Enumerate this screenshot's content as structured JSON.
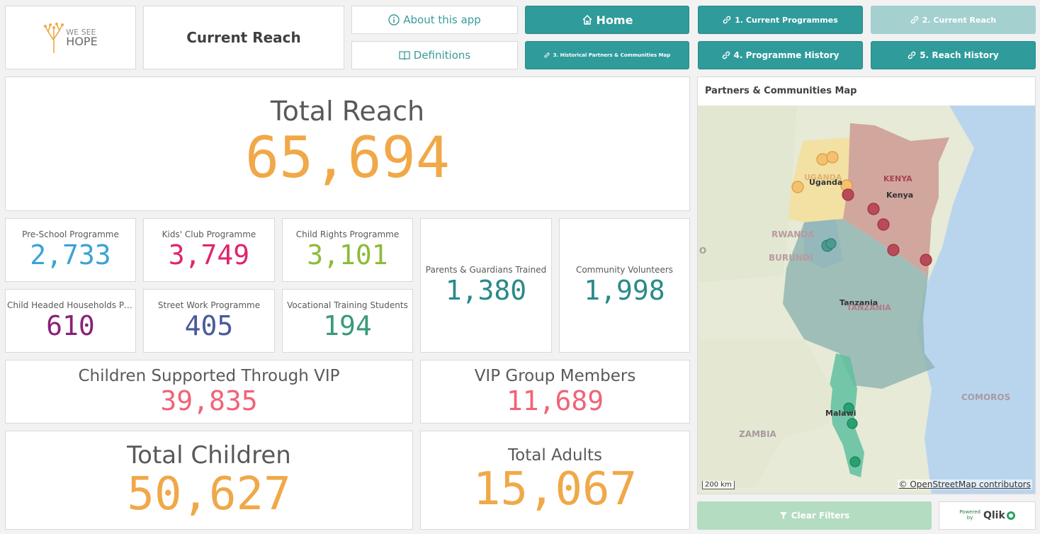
{
  "logo": {
    "line1": "WE SEE",
    "line2": "HOPE"
  },
  "header": {
    "title": "Current Reach"
  },
  "nav": {
    "about": "About this app",
    "definitions": "Definitions",
    "home": "Home",
    "current_programmes": "1. Current Programmes",
    "current_reach": "2. Current Reach",
    "historical_map": "3. Historical Partners & Communities Map",
    "programme_history": "4. Programme History",
    "reach_history": "5. Reach History"
  },
  "total_reach": {
    "label": "Total Reach",
    "value": "65,694"
  },
  "programmes": [
    {
      "label": "Pre-School Programme",
      "value": "2,733",
      "color": "#3aa3d6"
    },
    {
      "label": "Kids' Club Programme",
      "value": "3,749",
      "color": "#e0246f"
    },
    {
      "label": "Child Rights Programme",
      "value": "3,101",
      "color": "#8dbb3a"
    },
    {
      "label": "Child Headed Households Pro...",
      "value": "610",
      "color": "#8a2178"
    },
    {
      "label": "Street Work Programme",
      "value": "405",
      "color": "#4a5a9a"
    },
    {
      "label": "Vocational Training Students",
      "value": "194",
      "color": "#3a9a7a"
    }
  ],
  "parents": {
    "label": "Parents & Guardians Trained",
    "value": "1,380",
    "color": "#2a8a8a"
  },
  "volunteers": {
    "label": "Community Volunteers",
    "value": "1,998",
    "color": "#2a8a8a"
  },
  "vip_children": {
    "label": "Children Supported Through VIP",
    "value": "39,835",
    "color": "#f06478"
  },
  "vip_members": {
    "label": "VIP Group Members",
    "value": "11,689",
    "color": "#f06478"
  },
  "total_children": {
    "label": "Total Children",
    "value": "50,627",
    "color": "#f0a848"
  },
  "total_adults": {
    "label": "Total Adults",
    "value": "15,067",
    "color": "#f0a848"
  },
  "map": {
    "title": "Partners & Communities Map",
    "labels": {
      "uganda_upper": "UGANDA",
      "uganda": "Uganda",
      "kenya_upper": "KENYA",
      "kenya": "Kenya",
      "rwanda": "RWANDA",
      "burundi": "BURUNDI",
      "tanzania": "Tanzania",
      "tanzania_upper": "TANZANIA",
      "malawi": "Malawi",
      "zambia": "ZAMBIA",
      "comoros": "COMOROS",
      "left_edge": "O"
    },
    "scale": "200 km",
    "attribution": "© OpenStreetMap contributors"
  },
  "clear_filters": "Clear Filters",
  "qlik": {
    "powered": "Powered",
    "by": "by",
    "brand": "Qlik"
  }
}
